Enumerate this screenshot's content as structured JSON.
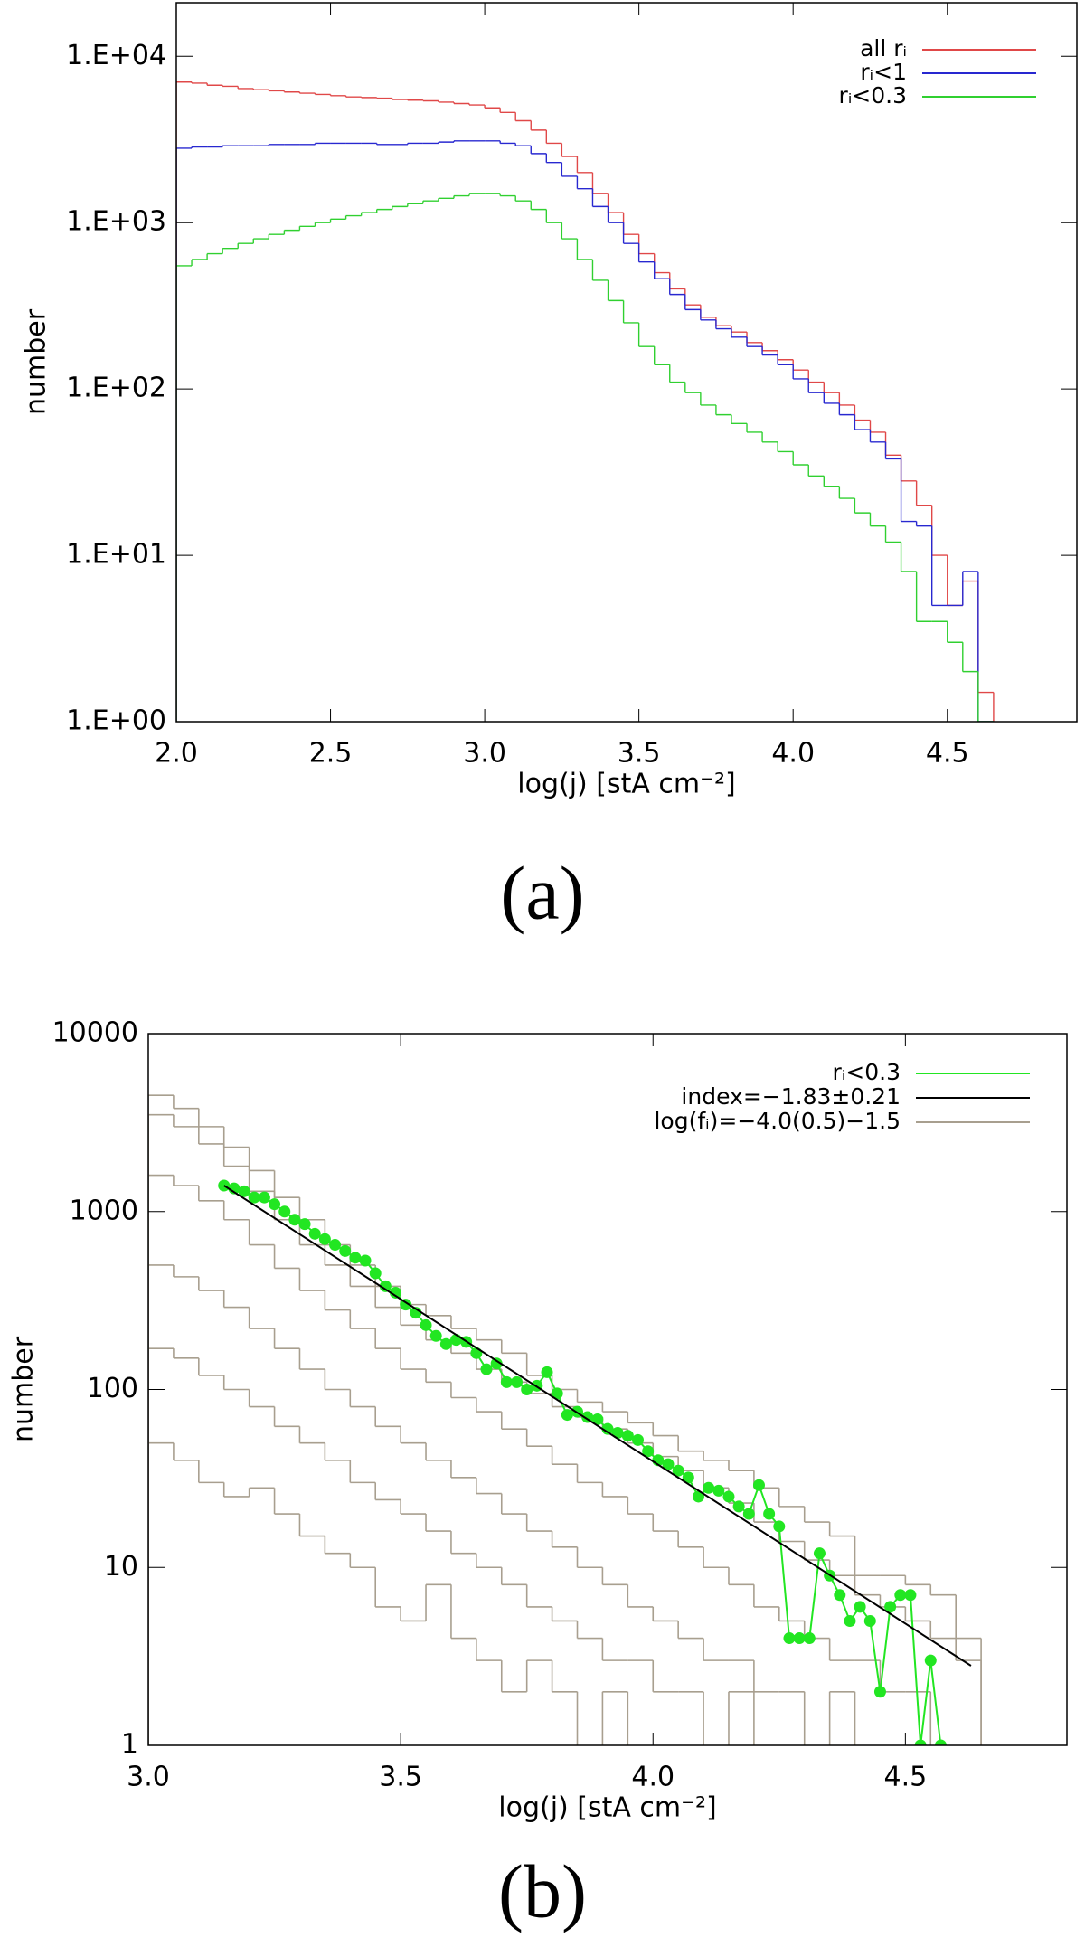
{
  "chart_data": [
    {
      "type": "histogram",
      "caption": "(a)",
      "xlabel": "log(j) [stA cm⁻²]",
      "ylabel": "number",
      "ylog": true,
      "legend": "upper right",
      "xlim": [
        2,
        4.92
      ],
      "ylim": [
        1,
        21000
      ],
      "xticks": [
        {
          "value": 2,
          "label": "2.0"
        },
        {
          "value": 2.5,
          "label": "2.5"
        },
        {
          "value": 3,
          "label": "3.0"
        },
        {
          "value": 3.5,
          "label": "3.5"
        },
        {
          "value": 4,
          "label": "4.0"
        },
        {
          "value": 4.5,
          "label": "4.5"
        }
      ],
      "yticks": [
        {
          "value": 1,
          "label": "1.E+00"
        },
        {
          "value": 10,
          "label": "1.E+01"
        },
        {
          "value": 100,
          "label": "1.E+02"
        },
        {
          "value": 1000,
          "label": "1.E+03"
        },
        {
          "value": 10000,
          "label": "1.E+04"
        }
      ],
      "bins": [
        2.0,
        2.05,
        2.1,
        2.15,
        2.2,
        2.25,
        2.3,
        2.35,
        2.4,
        2.45,
        2.5,
        2.55,
        2.6,
        2.65,
        2.7,
        2.75,
        2.8,
        2.85,
        2.9,
        2.95,
        3.0,
        3.05,
        3.1,
        3.15,
        3.2,
        3.25,
        3.3,
        3.35,
        3.4,
        3.45,
        3.5,
        3.55,
        3.6,
        3.65,
        3.7,
        3.75,
        3.8,
        3.85,
        3.9,
        3.95,
        4.0,
        4.05,
        4.1,
        4.15,
        4.2,
        4.25,
        4.3,
        4.35,
        4.4,
        4.45,
        4.5,
        4.55,
        4.6,
        4.65
      ],
      "series": [
        {
          "name": "all rᵢ",
          "color": "#e04848",
          "values": [
            7000,
            6900,
            6700,
            6600,
            6400,
            6300,
            6200,
            6100,
            6000,
            5900,
            5800,
            5700,
            5650,
            5600,
            5500,
            5450,
            5400,
            5300,
            5200,
            5100,
            4900,
            4600,
            4100,
            3600,
            3000,
            2500,
            2000,
            1500,
            1150,
            850,
            650,
            500,
            400,
            320,
            270,
            240,
            220,
            190,
            170,
            150,
            130,
            110,
            95,
            80,
            65,
            55,
            40,
            28,
            20,
            10,
            5,
            7,
            1.5
          ]
        },
        {
          "name": "rᵢ<1",
          "color": "#2828d0",
          "values": [
            2800,
            2850,
            2850,
            2900,
            2900,
            2900,
            2950,
            2950,
            2950,
            3000,
            3000,
            3000,
            3000,
            2950,
            2950,
            3000,
            3000,
            3050,
            3100,
            3100,
            3100,
            3000,
            2900,
            2600,
            2300,
            1900,
            1600,
            1250,
            1000,
            750,
            580,
            460,
            370,
            300,
            260,
            230,
            205,
            180,
            160,
            140,
            115,
            95,
            82,
            70,
            57,
            48,
            38,
            16,
            15,
            5,
            5,
            8,
            1
          ]
        },
        {
          "name": "rᵢ<0.3",
          "color": "#30d030",
          "values": [
            550,
            600,
            650,
            700,
            750,
            800,
            850,
            900,
            950,
            1000,
            1050,
            1100,
            1150,
            1200,
            1250,
            1300,
            1350,
            1400,
            1450,
            1500,
            1500,
            1450,
            1350,
            1200,
            1000,
            800,
            600,
            450,
            340,
            250,
            180,
            140,
            110,
            95,
            80,
            70,
            62,
            55,
            48,
            42,
            35,
            30,
            26,
            22,
            18,
            15,
            12,
            8,
            4,
            4,
            3,
            2,
            1
          ]
        }
      ]
    },
    {
      "type": "line",
      "caption": "(b)",
      "xlabel": "log(j) [stA cm⁻²]",
      "ylabel": "number",
      "ylog": true,
      "legend": "upper right",
      "xlim": [
        3,
        4.82
      ],
      "ylim": [
        1,
        10000
      ],
      "xticks": [
        {
          "value": 3,
          "label": "3.0"
        },
        3.5,
        {
          "value": 4,
          "label": "4.0"
        },
        4.5
      ],
      "yticks": [
        1,
        10,
        100,
        1000,
        10000
      ],
      "series": [
        {
          "name": "rᵢ<0.3",
          "color": "#22e622",
          "marker": "circle",
          "x": [
            3.15,
            3.17,
            3.19,
            3.21,
            3.23,
            3.25,
            3.27,
            3.29,
            3.31,
            3.33,
            3.35,
            3.37,
            3.39,
            3.41,
            3.43,
            3.45,
            3.47,
            3.49,
            3.51,
            3.53,
            3.55,
            3.57,
            3.59,
            3.61,
            3.63,
            3.65,
            3.67,
            3.69,
            3.71,
            3.73,
            3.75,
            3.77,
            3.79,
            3.81,
            3.83,
            3.85,
            3.87,
            3.89,
            3.91,
            3.93,
            3.95,
            3.97,
            3.99,
            4.01,
            4.03,
            4.05,
            4.07,
            4.09,
            4.11,
            4.13,
            4.15,
            4.17,
            4.19,
            4.21,
            4.23,
            4.25,
            4.27,
            4.29,
            4.31,
            4.33,
            4.35,
            4.37,
            4.39,
            4.41,
            4.43,
            4.45,
            4.47,
            4.49,
            4.51,
            4.53,
            4.55,
            4.57
          ],
          "values": [
            1400,
            1350,
            1300,
            1200,
            1200,
            1100,
            1000,
            900,
            850,
            750,
            700,
            650,
            600,
            550,
            530,
            450,
            380,
            350,
            300,
            270,
            230,
            200,
            180,
            190,
            185,
            160,
            130,
            140,
            110,
            110,
            100,
            105,
            125,
            95,
            72,
            75,
            70,
            68,
            60,
            57,
            55,
            52,
            45,
            40,
            38,
            35,
            32,
            25,
            28,
            27,
            25,
            22,
            20,
            29,
            20,
            17,
            4,
            4,
            4,
            12,
            9,
            7,
            5,
            6,
            5,
            2,
            6,
            7,
            7,
            1,
            3,
            1
          ]
        },
        {
          "name": "index=−1.83±0.21",
          "color": "#000000",
          "x": [
            3.15,
            4.63
          ],
          "values": [
            1400,
            2.8
          ]
        }
      ],
      "histogram_series": {
        "name": "log(fᵢ)=−4.0(0.5)−1.5",
        "color": "#a89f8f",
        "bins": [
          3.0,
          3.05,
          3.1,
          3.15,
          3.2,
          3.25,
          3.3,
          3.35,
          3.4,
          3.45,
          3.5,
          3.55,
          3.6,
          3.65,
          3.7,
          3.75,
          3.8,
          3.85,
          3.9,
          3.95,
          4.0,
          4.05,
          4.1,
          4.15,
          4.2,
          4.25,
          4.3,
          4.35,
          4.4,
          4.45,
          4.5,
          4.55,
          4.6,
          4.65
        ],
        "curves": [
          [
            4500,
            3800,
            3000,
            2300,
            1700,
            1200,
            900,
            650,
            500,
            380,
            300,
            260,
            220,
            190,
            160,
            120,
            100,
            85,
            75,
            65,
            55,
            45,
            40,
            35,
            28,
            22,
            18,
            15,
            9,
            9,
            8,
            7,
            4
          ],
          [
            3500,
            3000,
            2400,
            1800,
            1300,
            900,
            650,
            500,
            380,
            290,
            230,
            190,
            160,
            130,
            110,
            95,
            80,
            70,
            60,
            50,
            42,
            35,
            28,
            23,
            18,
            14,
            11,
            9,
            7,
            6,
            5,
            4,
            3
          ],
          [
            1600,
            1400,
            1150,
            900,
            650,
            480,
            360,
            280,
            220,
            170,
            130,
            110,
            90,
            75,
            60,
            48,
            38,
            30,
            25,
            20,
            16,
            13,
            10,
            8,
            6,
            5,
            4,
            3,
            3,
            2,
            2,
            null,
            null
          ],
          [
            500,
            430,
            360,
            290,
            220,
            170,
            130,
            100,
            80,
            62,
            50,
            40,
            32,
            26,
            20,
            16,
            13,
            10,
            8,
            6,
            5,
            4,
            3,
            3,
            2,
            2,
            null,
            2,
            null,
            null,
            null,
            null,
            null
          ],
          [
            170,
            150,
            120,
            100,
            80,
            62,
            50,
            40,
            30,
            24,
            20,
            16,
            12,
            10,
            8,
            6,
            5,
            4,
            3,
            3,
            2,
            2,
            null,
            2,
            null,
            null,
            null,
            null,
            null,
            null,
            null,
            null,
            null
          ],
          [
            50,
            40,
            30,
            25,
            28,
            20,
            15,
            12,
            10,
            6,
            5,
            8,
            4,
            3,
            2,
            3,
            2,
            null,
            2,
            null,
            null,
            null,
            null,
            null,
            null,
            null,
            null,
            null,
            null,
            null,
            null,
            null,
            null
          ]
        ]
      }
    }
  ]
}
